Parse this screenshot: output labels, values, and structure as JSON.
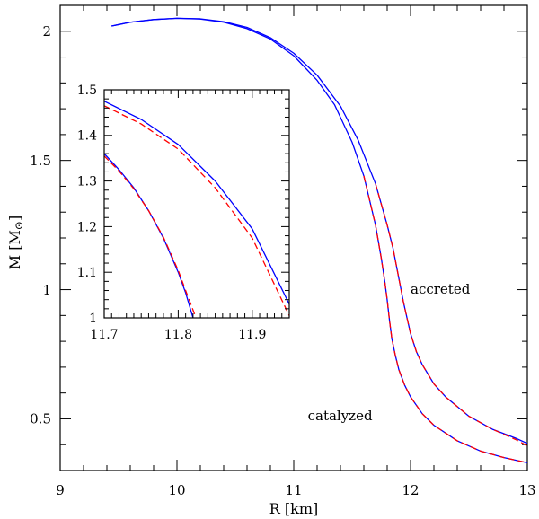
{
  "chart_data": [
    {
      "type": "line",
      "panel": "main",
      "xlabel": "R [km]",
      "ylabel": "M [M",
      "ylabel_sub": "⊙",
      "ylabel_close": "]",
      "xlim": [
        9,
        13
      ],
      "ylim": [
        0.3,
        2.1
      ],
      "xticks": [
        9,
        10,
        11,
        12,
        13
      ],
      "xtick_labels": [
        "9",
        "10",
        "11",
        "12",
        "13"
      ],
      "yticks": [
        0.5,
        1,
        1.5,
        2
      ],
      "ytick_labels": [
        "0.5",
        "1",
        "1.5",
        "2"
      ],
      "annotations": [
        {
          "text": "accreted",
          "x": 12.0,
          "y": 0.985
        },
        {
          "text": "catalyzed",
          "x": 11.12,
          "y": 0.495
        }
      ],
      "series": [
        {
          "label": "catalyzed",
          "color": "#0000ff",
          "dash": "solid",
          "x": [
            9.44,
            9.6,
            9.8,
            10.0,
            10.2,
            10.4,
            10.6,
            10.8,
            11.0,
            11.2,
            11.35,
            11.5,
            11.6,
            11.7,
            11.75,
            11.78,
            11.8,
            11.82,
            11.84,
            11.87,
            11.9,
            11.95,
            12.0,
            12.1,
            12.2,
            12.4,
            12.6,
            12.8,
            13.0
          ],
          "y": [
            2.02,
            2.035,
            2.045,
            2.05,
            2.047,
            2.035,
            2.01,
            1.97,
            1.905,
            1.81,
            1.715,
            1.57,
            1.44,
            1.25,
            1.12,
            1.03,
            0.96,
            0.88,
            0.81,
            0.745,
            0.69,
            0.63,
            0.585,
            0.52,
            0.475,
            0.415,
            0.375,
            0.35,
            0.33
          ]
        },
        {
          "label": "catalyzed",
          "color": "#ff0000",
          "dash": "dashed",
          "x": [
            11.6,
            11.7,
            11.75,
            11.78,
            11.8,
            11.82,
            11.84,
            11.87,
            11.9,
            11.95,
            12.0,
            12.1,
            12.2,
            12.4,
            12.6,
            12.8,
            13.0
          ],
          "y": [
            1.44,
            1.25,
            1.12,
            1.03,
            0.96,
            0.88,
            0.81,
            0.745,
            0.69,
            0.63,
            0.585,
            0.52,
            0.475,
            0.415,
            0.375,
            0.35,
            0.33
          ]
        },
        {
          "label": "accreted",
          "color": "#0000ff",
          "dash": "solid",
          "x": [
            9.44,
            9.6,
            9.8,
            10.0,
            10.2,
            10.4,
            10.6,
            10.8,
            11.0,
            11.2,
            11.4,
            11.55,
            11.7,
            11.8,
            11.85,
            11.88,
            11.91,
            11.94,
            11.97,
            12.0,
            12.05,
            12.1,
            12.2,
            12.3,
            12.5,
            12.7,
            12.9,
            13.0
          ],
          "y": [
            2.02,
            2.035,
            2.045,
            2.05,
            2.048,
            2.037,
            2.015,
            1.975,
            1.915,
            1.83,
            1.71,
            1.58,
            1.41,
            1.25,
            1.16,
            1.09,
            1.02,
            0.95,
            0.89,
            0.83,
            0.76,
            0.71,
            0.635,
            0.585,
            0.51,
            0.46,
            0.425,
            0.405
          ]
        },
        {
          "label": "accreted",
          "color": "#ff0000",
          "dash": "dashed",
          "x": [
            11.7,
            11.8,
            11.85,
            11.88,
            11.91,
            11.94,
            11.97,
            12.0,
            12.05,
            12.1,
            12.2,
            12.3,
            12.5,
            12.7,
            12.9,
            13.0
          ],
          "y": [
            1.41,
            1.25,
            1.16,
            1.09,
            1.02,
            0.95,
            0.89,
            0.83,
            0.76,
            0.71,
            0.635,
            0.585,
            0.51,
            0.46,
            0.42,
            0.395
          ]
        }
      ]
    },
    {
      "type": "line",
      "panel": "inset",
      "xlim": [
        11.7,
        11.95
      ],
      "ylim": [
        1,
        1.5
      ],
      "xticks": [
        11.7,
        11.8,
        11.9
      ],
      "xtick_labels": [
        "11.7",
        "11.8",
        "11.9"
      ],
      "yticks": [
        1,
        1.1,
        1.2,
        1.3,
        1.4,
        1.5
      ],
      "ytick_labels": [
        "1",
        "1.1",
        "1.2",
        "1.3",
        "1.4",
        "1.5"
      ],
      "series": [
        {
          "label": "catalyzed",
          "color": "#0000ff",
          "dash": "solid",
          "x": [
            11.7,
            11.72,
            11.74,
            11.76,
            11.78,
            11.8,
            11.81,
            11.82
          ],
          "y": [
            1.36,
            1.325,
            1.285,
            1.235,
            1.175,
            1.1,
            1.055,
            1.0
          ]
        },
        {
          "label": "catalyzed",
          "color": "#ff0000",
          "dash": "dashed",
          "x": [
            11.7,
            11.72,
            11.74,
            11.76,
            11.78,
            11.8,
            11.81,
            11.824
          ],
          "y": [
            1.355,
            1.322,
            1.283,
            1.235,
            1.177,
            1.104,
            1.06,
            1.0
          ]
        },
        {
          "label": "accreted",
          "color": "#0000ff",
          "dash": "solid",
          "x": [
            11.7,
            11.75,
            11.8,
            11.85,
            11.9,
            11.95
          ],
          "y": [
            1.475,
            1.435,
            1.38,
            1.3,
            1.195,
            1.03
          ]
        },
        {
          "label": "accreted",
          "color": "#ff0000",
          "dash": "dashed",
          "x": [
            11.7,
            11.75,
            11.8,
            11.85,
            11.9,
            11.95
          ],
          "y": [
            1.465,
            1.425,
            1.37,
            1.285,
            1.175,
            1.005
          ]
        }
      ]
    }
  ]
}
